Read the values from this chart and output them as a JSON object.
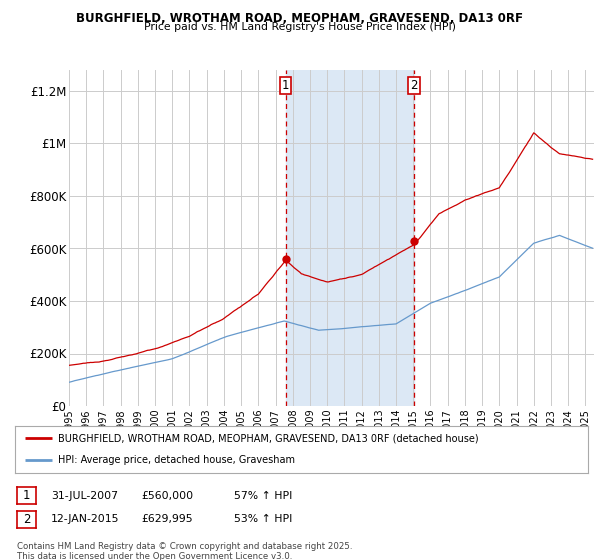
{
  "title1": "BURGHFIELD, WROTHAM ROAD, MEOPHAM, GRAVESEND, DA13 0RF",
  "title2": "Price paid vs. HM Land Registry's House Price Index (HPI)",
  "ylabel_ticks": [
    "£0",
    "£200K",
    "£400K",
    "£600K",
    "£800K",
    "£1M",
    "£1.2M"
  ],
  "ytick_vals": [
    0,
    200000,
    400000,
    600000,
    800000,
    1000000,
    1200000
  ],
  "ylim": [
    0,
    1280000
  ],
  "xlim_start": 1995.0,
  "xlim_end": 2025.5,
  "sale1_x": 2007.58,
  "sale1_y": 560000,
  "sale2_x": 2015.04,
  "sale2_y": 629995,
  "line1_color": "#cc0000",
  "line2_color": "#6699cc",
  "shade_color": "#dce8f5",
  "legend1": "BURGHFIELD, WROTHAM ROAD, MEOPHAM, GRAVESEND, DA13 0RF (detached house)",
  "legend2": "HPI: Average price, detached house, Gravesham",
  "annotation1_label": "1",
  "annotation2_label": "2",
  "copyright": "Contains HM Land Registry data © Crown copyright and database right 2025.\nThis data is licensed under the Open Government Licence v3.0.",
  "background_color": "#ffffff",
  "grid_color": "#cccccc"
}
